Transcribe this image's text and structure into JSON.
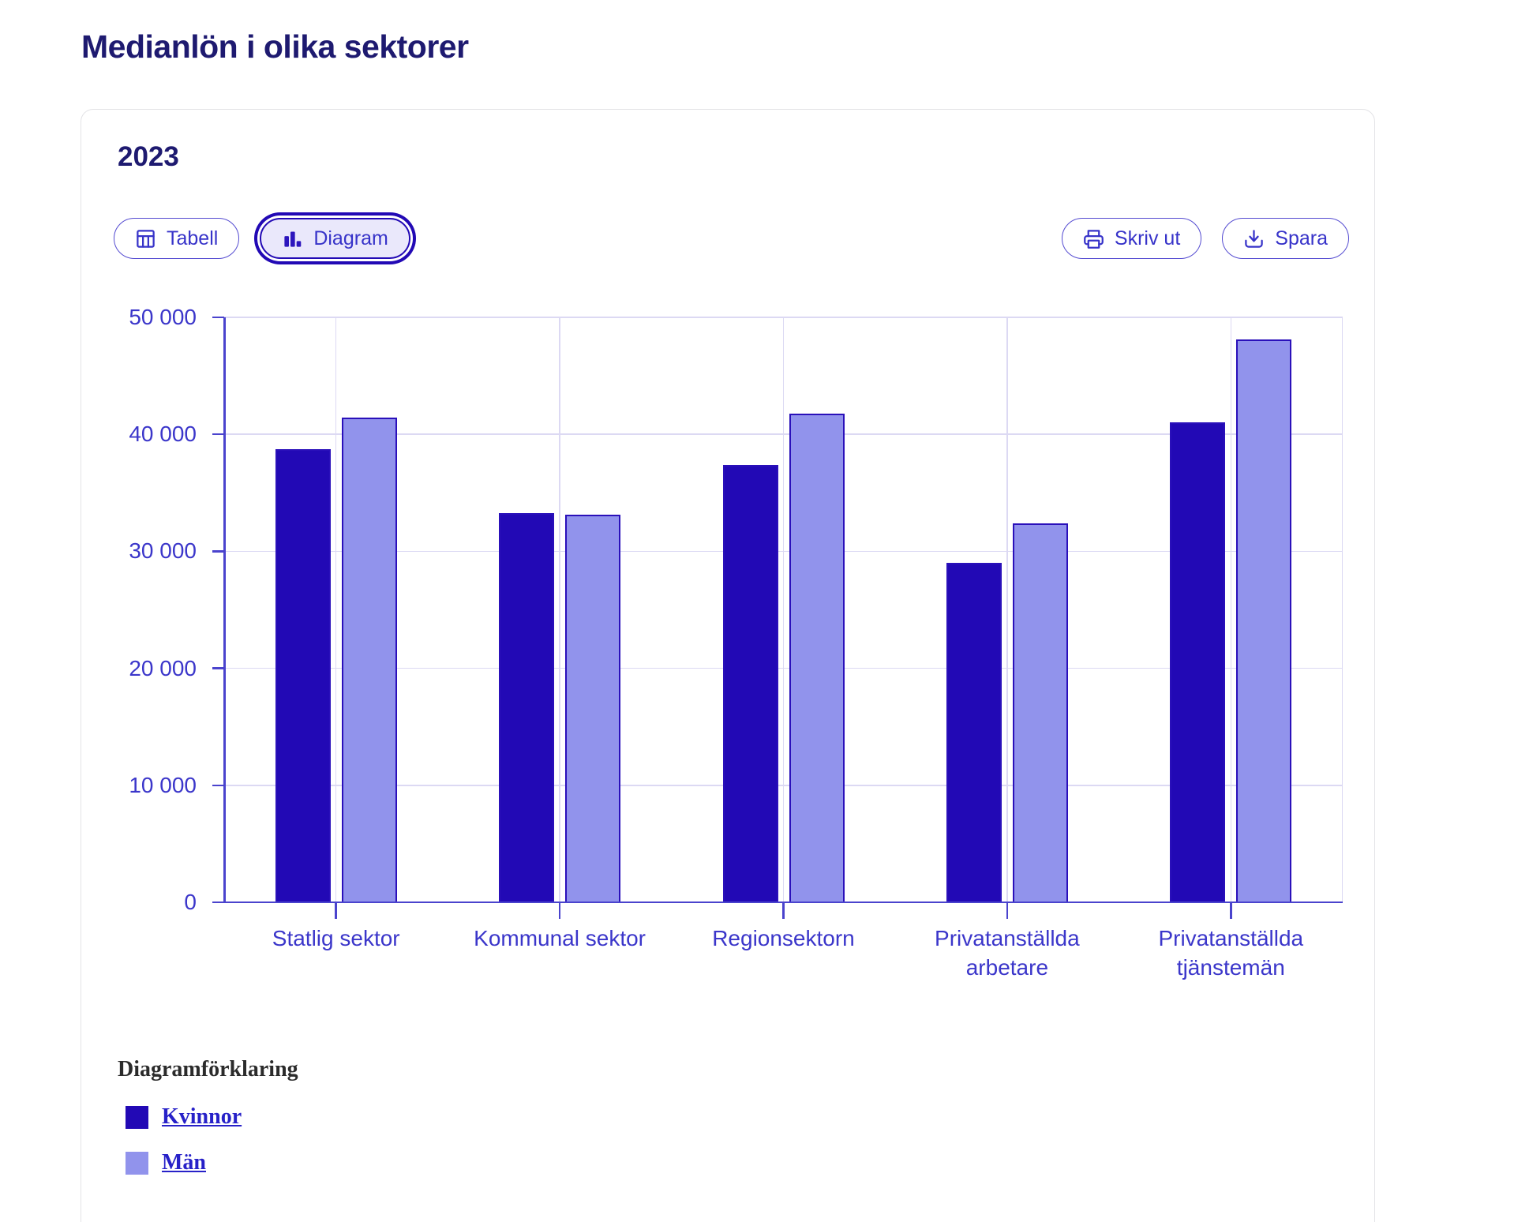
{
  "page_title": "Medianlön i olika sektorer",
  "card": {
    "year": "2023"
  },
  "toolbar": {
    "tabell_label": "Tabell",
    "diagram_label": "Diagram",
    "print_label": "Skriv ut",
    "save_label": "Spara"
  },
  "chart_data": {
    "type": "bar",
    "title": "2023",
    "categories": [
      "Statlig sektor",
      "Kommunal sektor",
      "Regionsektorn",
      "Privatanställda arbetare",
      "Privatanställda tjänstemän"
    ],
    "series": [
      {
        "name": "Kvinnor",
        "color": "#2209b5",
        "values": [
          38700,
          33300,
          37400,
          29000,
          41000
        ]
      },
      {
        "name": "Män",
        "color": "#9193ec",
        "values": [
          41400,
          33100,
          41800,
          32400,
          48100
        ]
      }
    ],
    "ylim": [
      0,
      50000
    ],
    "ytick_step": 10000,
    "ytick_labels": [
      "0",
      "10 000",
      "20 000",
      "30 000",
      "40 000",
      "50 000"
    ],
    "grid": true,
    "legend_position": "bottom",
    "legend_heading": "Diagramförklaring"
  },
  "colors": {
    "accent_dark": "#2209b5",
    "accent_light": "#9193ec",
    "axis": "#4a43cd",
    "axis_text": "#3b36ca",
    "gridline": "#dcd9f3",
    "heading_navy": "#1e1a70",
    "selected_bg": "#eae8fb"
  }
}
